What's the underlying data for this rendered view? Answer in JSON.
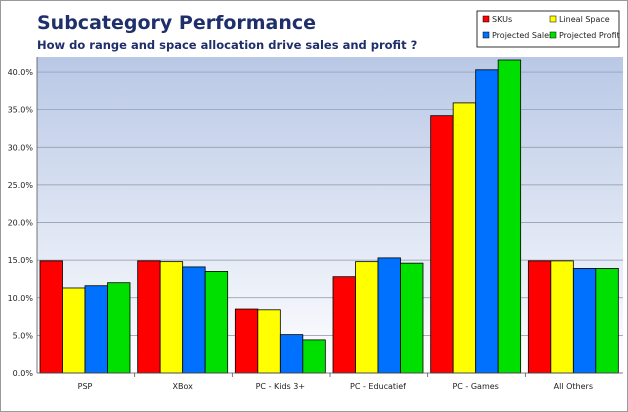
{
  "chart_data": {
    "type": "bar",
    "title": "Subcategory Performance",
    "subtitle": "How do range and space allocation drive sales and profit ?",
    "categories": [
      "PSP",
      "XBox",
      "PC - Kids 3+",
      "PC - Educatief",
      "PC - Games",
      "All Others"
    ],
    "series": [
      {
        "name": "SKUs",
        "color": "#ff0000",
        "values": [
          14.9,
          14.9,
          8.5,
          12.8,
          34.2,
          14.9
        ]
      },
      {
        "name": "Lineal Space",
        "color": "#ffff00",
        "values": [
          11.3,
          14.8,
          8.4,
          14.8,
          35.9,
          14.9
        ]
      },
      {
        "name": "Projected Sales",
        "color": "#0070ff",
        "values": [
          11.6,
          14.1,
          5.1,
          15.3,
          40.3,
          13.9
        ]
      },
      {
        "name": "Projected Profit",
        "color": "#00e000",
        "values": [
          12.0,
          13.5,
          4.4,
          14.6,
          41.6,
          13.9
        ]
      }
    ],
    "ylim": [
      0,
      42
    ],
    "yticks": [
      "0.0%",
      "5.0%",
      "10.0%",
      "15.0%",
      "20.0%",
      "25.0%",
      "30.0%",
      "35.0%",
      "40.0%"
    ],
    "ytick_values": [
      0,
      5,
      10,
      15,
      20,
      25,
      30,
      35,
      40
    ],
    "grid": true,
    "legend_position": "top-right"
  }
}
